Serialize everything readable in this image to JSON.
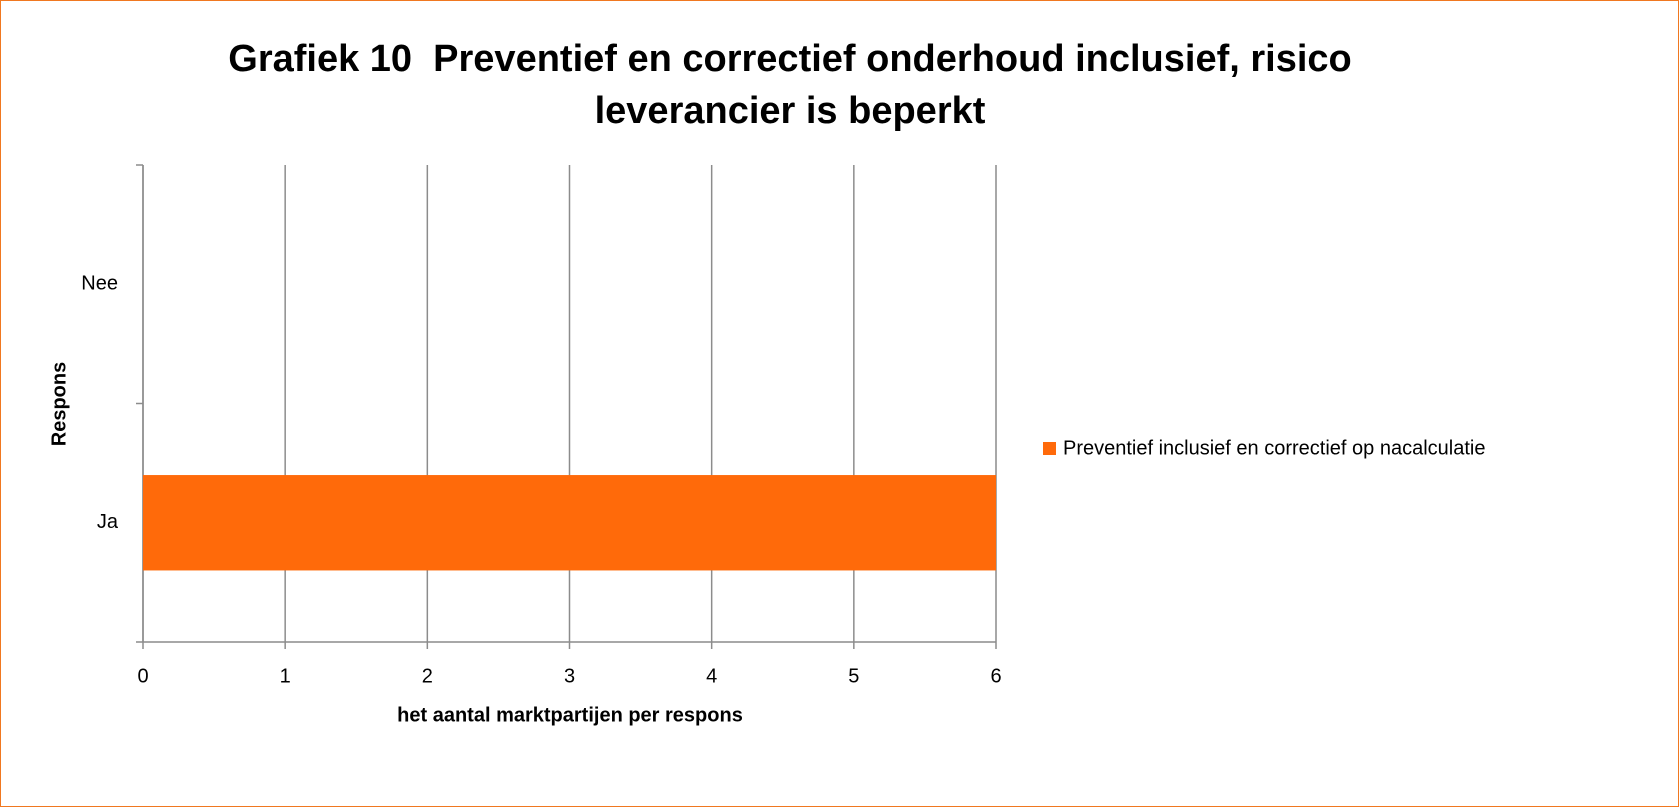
{
  "chart_data": {
    "type": "bar",
    "orientation": "horizontal",
    "title": "Grafiek 10  Preventief en correctief onderhoud inclusief, risico leverancier is beperkt",
    "x_label": "het aantal marktpartijen per respons",
    "y_label": "Respons",
    "categories": [
      "Ja",
      "Nee"
    ],
    "series": [
      {
        "name": "Preventief inclusief en correctief op nacalculatie",
        "color": "#ff6a0a",
        "values": [
          6,
          0
        ]
      }
    ],
    "xlim": [
      0,
      6
    ],
    "xticks": [
      0,
      1,
      2,
      3,
      4,
      5,
      6
    ],
    "grid": true,
    "legend": "right"
  }
}
